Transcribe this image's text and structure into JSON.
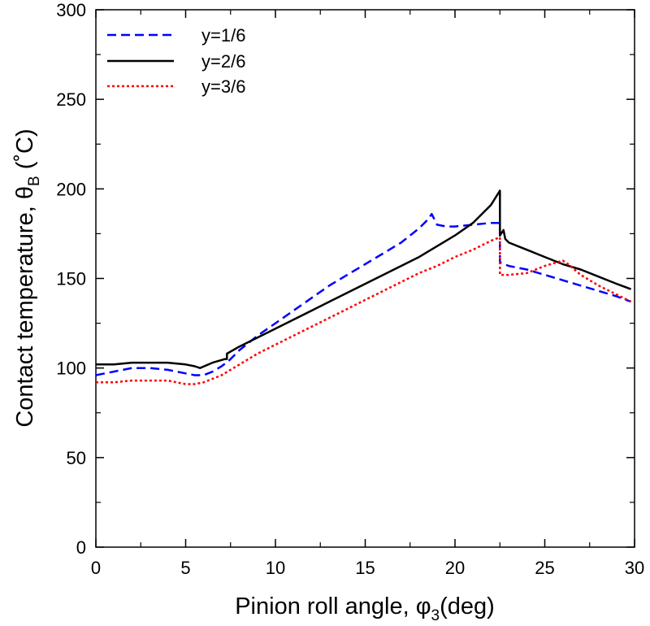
{
  "chart_data": {
    "type": "line",
    "xlabel": {
      "main": "Pinion roll angle, φ",
      "sub": "3",
      "tail": "(deg)"
    },
    "ylabel": {
      "main": "Contact temperature, θ",
      "sub": "B",
      "tail": " (˚C)"
    },
    "xlim": [
      0,
      30
    ],
    "ylim": [
      0,
      300
    ],
    "xticks": [
      0,
      5,
      10,
      15,
      20,
      25,
      30
    ],
    "yticks": [
      0,
      50,
      100,
      150,
      200,
      250,
      300
    ],
    "grid": false,
    "legend_position": "top-left",
    "series": [
      {
        "name": "y=1/6",
        "color": "#0000ff",
        "style": "dashed",
        "x": [
          0,
          1,
          2,
          3,
          4,
          5,
          5.5,
          6.0,
          6.5,
          7.0,
          7.4,
          8,
          9,
          10,
          11,
          12,
          13,
          14,
          15,
          16,
          17,
          17.5,
          18,
          18.5,
          18.7,
          19.0,
          19.5,
          20,
          21,
          22,
          22.5,
          22.5,
          23,
          24,
          25,
          26,
          27,
          28,
          29,
          29.8
        ],
        "y": [
          96,
          98,
          100,
          100,
          99,
          97,
          96,
          96,
          98,
          101,
          104,
          110,
          118,
          125,
          132,
          139,
          146,
          152,
          158,
          164,
          170,
          174,
          178,
          183,
          186,
          180,
          179,
          179,
          180,
          181,
          181,
          159,
          157,
          155,
          152,
          149,
          146,
          143,
          140,
          137
        ]
      },
      {
        "name": "y=2/6",
        "color": "#000000",
        "style": "solid",
        "x": [
          0,
          1,
          2,
          3,
          4,
          5,
          5.5,
          5.8,
          6.5,
          7.2,
          7.3,
          7.3,
          8,
          9,
          10,
          11,
          12,
          13,
          14,
          15,
          16,
          17,
          18,
          19,
          20,
          21,
          22,
          22.5,
          22.5,
          22.7,
          22.8,
          23,
          24,
          25,
          26,
          27,
          28,
          29,
          29.8
        ],
        "y": [
          102,
          102,
          103,
          103,
          103,
          102,
          101,
          100,
          103,
          105,
          105,
          108,
          112,
          117,
          122,
          127,
          132,
          137,
          142,
          147,
          152,
          157,
          162,
          168,
          174,
          181,
          191,
          199,
          174,
          177,
          172,
          170,
          166,
          162,
          158,
          155,
          151,
          147,
          144
        ]
      },
      {
        "name": "y=3/6",
        "color": "#ff0000",
        "style": "dotted",
        "x": [
          0,
          1,
          2,
          3,
          4,
          5,
          5.5,
          6,
          7,
          8,
          9,
          10,
          11,
          12,
          13,
          14,
          15,
          16,
          17,
          18,
          19,
          20,
          21,
          22,
          22.5,
          22.5,
          23,
          24,
          25,
          26,
          26.3,
          27,
          28,
          29,
          29.8
        ],
        "y": [
          92,
          92,
          93,
          93,
          93,
          91,
          91,
          92,
          96,
          102,
          108,
          113,
          118,
          123,
          128,
          133,
          138,
          143,
          148,
          153,
          157,
          162,
          166,
          171,
          173,
          152,
          152,
          153,
          157,
          160,
          158,
          152,
          146,
          141,
          137
        ]
      }
    ]
  }
}
